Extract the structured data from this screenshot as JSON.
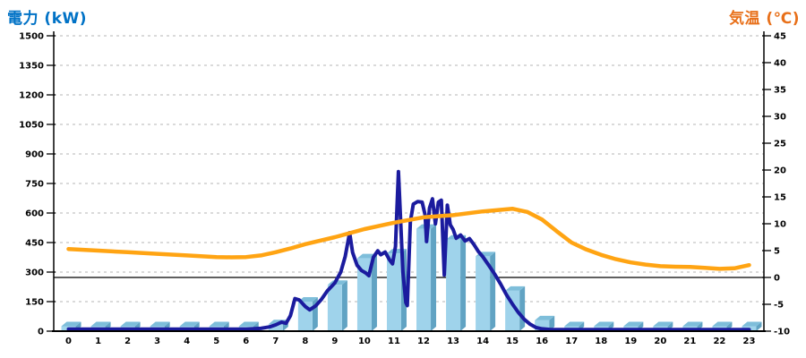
{
  "chart_data": {
    "type": "combo-bar-line",
    "title": "",
    "legend": "none",
    "grid": {
      "show": true,
      "color": "#B5B5B5",
      "dash": "3 4"
    },
    "left_axis": {
      "title": "電力 (kW)",
      "title_color": "#0072C6",
      "min": 0,
      "max": 1500,
      "step": 150,
      "tick_labels": [
        "0",
        "150",
        "300",
        "450",
        "600",
        "750",
        "900",
        "1050",
        "1200",
        "1350",
        "1500"
      ]
    },
    "right_axis": {
      "title": "気温 (℃)",
      "title_color": "#E8701A",
      "min": -10,
      "max": 45,
      "step": 5,
      "tick_labels": [
        "-10",
        "-5",
        "0",
        "5",
        "10",
        "15",
        "20",
        "25",
        "30",
        "35",
        "40",
        "45"
      ]
    },
    "x_axis": {
      "tick_labels": [
        "0",
        "1",
        "2",
        "3",
        "4",
        "5",
        "6",
        "7",
        "8",
        "9",
        "10",
        "11",
        "12",
        "13",
        "14",
        "15",
        "16",
        "17",
        "18",
        "19",
        "20",
        "21",
        "22",
        "23"
      ]
    },
    "zero_temp_line": {
      "value": 0,
      "axis": "right",
      "color": "#000000"
    },
    "bar_colors": {
      "front": "#9FD3EB",
      "top": "#7EBEDA",
      "side": "#61A3C3"
    },
    "series": [
      {
        "name": "power-bars",
        "type": "bar",
        "axis": "left",
        "values": [
          25,
          25,
          25,
          25,
          25,
          25,
          25,
          35,
          150,
          235,
          370,
          395,
          520,
          465,
          380,
          205,
          55,
          25,
          25,
          25,
          25,
          25,
          25,
          25
        ]
      },
      {
        "name": "power-line",
        "type": "line",
        "axis": "left",
        "color": "#1B1B9E",
        "width": 4,
        "points": [
          [
            0,
            10
          ],
          [
            0.5,
            10
          ],
          [
            1,
            10
          ],
          [
            1.5,
            10
          ],
          [
            2,
            10
          ],
          [
            2.5,
            10
          ],
          [
            3,
            10
          ],
          [
            3.5,
            10
          ],
          [
            4,
            10
          ],
          [
            4.5,
            10
          ],
          [
            5,
            10
          ],
          [
            5.5,
            10
          ],
          [
            6,
            10
          ],
          [
            6.5,
            14
          ],
          [
            6.8,
            22
          ],
          [
            7,
            32
          ],
          [
            7.2,
            46
          ],
          [
            7.35,
            40
          ],
          [
            7.5,
            78
          ],
          [
            7.65,
            165
          ],
          [
            7.8,
            158
          ],
          [
            8,
            125
          ],
          [
            8.15,
            108
          ],
          [
            8.35,
            128
          ],
          [
            8.55,
            162
          ],
          [
            8.75,
            205
          ],
          [
            9,
            245
          ],
          [
            9.2,
            300
          ],
          [
            9.35,
            380
          ],
          [
            9.5,
            500
          ],
          [
            9.6,
            400
          ],
          [
            9.75,
            335
          ],
          [
            9.9,
            308
          ],
          [
            10.05,
            295
          ],
          [
            10.15,
            282
          ],
          [
            10.3,
            375
          ],
          [
            10.45,
            408
          ],
          [
            10.55,
            388
          ],
          [
            10.7,
            402
          ],
          [
            10.85,
            362
          ],
          [
            10.95,
            342
          ],
          [
            11.05,
            430
          ],
          [
            11.15,
            810
          ],
          [
            11.3,
            300
          ],
          [
            11.4,
            145
          ],
          [
            11.45,
            130
          ],
          [
            11.55,
            555
          ],
          [
            11.65,
            645
          ],
          [
            11.8,
            658
          ],
          [
            11.95,
            655
          ],
          [
            12.05,
            590
          ],
          [
            12.1,
            455
          ],
          [
            12.2,
            625
          ],
          [
            12.3,
            672
          ],
          [
            12.4,
            545
          ],
          [
            12.5,
            655
          ],
          [
            12.6,
            665
          ],
          [
            12.7,
            285
          ],
          [
            12.8,
            640
          ],
          [
            12.9,
            540
          ],
          [
            13,
            515
          ],
          [
            13.1,
            472
          ],
          [
            13.25,
            488
          ],
          [
            13.4,
            458
          ],
          [
            13.55,
            470
          ],
          [
            13.7,
            440
          ],
          [
            13.85,
            405
          ],
          [
            14,
            378
          ],
          [
            14.2,
            335
          ],
          [
            14.4,
            290
          ],
          [
            14.6,
            240
          ],
          [
            14.8,
            185
          ],
          [
            15,
            138
          ],
          [
            15.2,
            95
          ],
          [
            15.4,
            60
          ],
          [
            15.6,
            35
          ],
          [
            15.8,
            18
          ],
          [
            16,
            12
          ],
          [
            16.3,
            8
          ],
          [
            17,
            8
          ],
          [
            18,
            8
          ],
          [
            19,
            8
          ],
          [
            20,
            8
          ],
          [
            21,
            8
          ],
          [
            22,
            8
          ],
          [
            23,
            8
          ]
        ]
      },
      {
        "name": "temperature-line",
        "type": "line",
        "axis": "right",
        "color": "#FFA413",
        "width": 4.5,
        "points": [
          [
            0,
            5.3
          ],
          [
            1,
            5.0
          ],
          [
            2,
            4.7
          ],
          [
            3,
            4.4
          ],
          [
            4,
            4.1
          ],
          [
            5,
            3.8
          ],
          [
            5.5,
            3.75
          ],
          [
            6,
            3.8
          ],
          [
            6.5,
            4.1
          ],
          [
            7,
            4.7
          ],
          [
            7.5,
            5.4
          ],
          [
            8,
            6.2
          ],
          [
            9,
            7.5
          ],
          [
            10,
            9.0
          ],
          [
            11,
            10.2
          ],
          [
            12,
            11.2
          ],
          [
            13,
            11.6
          ],
          [
            14,
            12.3
          ],
          [
            15,
            12.8
          ],
          [
            15.5,
            12.2
          ],
          [
            16,
            10.8
          ],
          [
            16.5,
            8.6
          ],
          [
            17,
            6.5
          ],
          [
            17.5,
            5.2
          ],
          [
            18,
            4.2
          ],
          [
            18.5,
            3.4
          ],
          [
            19,
            2.8
          ],
          [
            19.5,
            2.4
          ],
          [
            20,
            2.1
          ],
          [
            20.5,
            2.0
          ],
          [
            21,
            1.95
          ],
          [
            21.5,
            1.8
          ],
          [
            22,
            1.6
          ],
          [
            22.5,
            1.7
          ],
          [
            23,
            2.3
          ]
        ]
      }
    ]
  }
}
